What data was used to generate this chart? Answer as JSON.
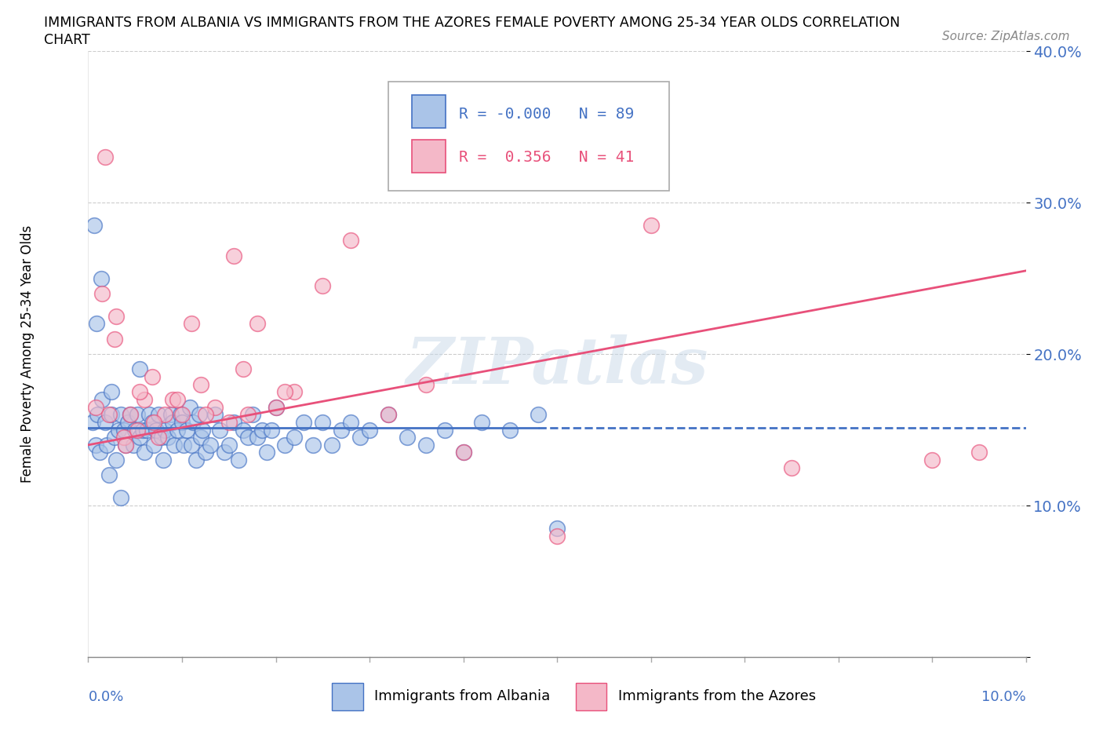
{
  "title_line1": "IMMIGRANTS FROM ALBANIA VS IMMIGRANTS FROM THE AZORES FEMALE POVERTY AMONG 25-34 YEAR OLDS CORRELATION",
  "title_line2": "CHART",
  "source": "Source: ZipAtlas.com",
  "ylabel": "Female Poverty Among 25-34 Year Olds",
  "xlim": [
    0.0,
    10.0
  ],
  "ylim": [
    0.0,
    40.0
  ],
  "albania_color": "#aac4e8",
  "azores_color": "#f4b8c8",
  "albania_edge_color": "#4472c4",
  "azores_edge_color": "#e8507a",
  "albania_line_color": "#4472c4",
  "azores_line_color": "#e8507a",
  "legend_albania_R": "-0.000",
  "legend_albania_N": "89",
  "legend_azores_R": "0.356",
  "legend_azores_N": "41",
  "watermark": "ZIPatlas",
  "albania_x": [
    0.05,
    0.08,
    0.1,
    0.12,
    0.15,
    0.18,
    0.2,
    0.22,
    0.25,
    0.28,
    0.3,
    0.32,
    0.35,
    0.38,
    0.4,
    0.42,
    0.45,
    0.48,
    0.5,
    0.52,
    0.55,
    0.58,
    0.6,
    0.62,
    0.65,
    0.68,
    0.7,
    0.72,
    0.75,
    0.78,
    0.8,
    0.82,
    0.85,
    0.88,
    0.9,
    0.92,
    0.95,
    0.98,
    1.0,
    1.02,
    1.05,
    1.08,
    1.1,
    1.12,
    1.15,
    1.18,
    1.2,
    1.22,
    1.25,
    1.3,
    1.35,
    1.4,
    1.45,
    1.5,
    1.55,
    1.6,
    1.65,
    1.7,
    1.75,
    1.8,
    1.85,
    1.9,
    1.95,
    2.0,
    2.1,
    2.2,
    2.3,
    2.4,
    2.5,
    2.6,
    2.7,
    2.8,
    2.9,
    3.0,
    3.2,
    3.4,
    3.6,
    3.8,
    4.0,
    4.2,
    4.5,
    5.0,
    4.8,
    0.06,
    0.09,
    0.14,
    0.25,
    0.35,
    0.55
  ],
  "albania_y": [
    15.5,
    14.0,
    16.0,
    13.5,
    17.0,
    15.5,
    14.0,
    12.0,
    16.0,
    14.5,
    13.0,
    15.0,
    16.0,
    15.0,
    14.0,
    15.5,
    16.0,
    14.0,
    15.0,
    16.0,
    14.5,
    15.0,
    13.5,
    15.0,
    16.0,
    15.5,
    14.0,
    15.0,
    16.0,
    14.5,
    13.0,
    15.0,
    14.5,
    16.0,
    15.5,
    14.0,
    15.0,
    16.0,
    15.5,
    14.0,
    15.0,
    16.5,
    14.0,
    15.5,
    13.0,
    16.0,
    14.5,
    15.0,
    13.5,
    14.0,
    16.0,
    15.0,
    13.5,
    14.0,
    15.5,
    13.0,
    15.0,
    14.5,
    16.0,
    14.5,
    15.0,
    13.5,
    15.0,
    16.5,
    14.0,
    14.5,
    15.5,
    14.0,
    15.5,
    14.0,
    15.0,
    15.5,
    14.5,
    15.0,
    16.0,
    14.5,
    14.0,
    15.0,
    13.5,
    15.5,
    15.0,
    8.5,
    16.0,
    28.5,
    22.0,
    25.0,
    17.5,
    10.5,
    19.0
  ],
  "azores_x": [
    0.08,
    0.15,
    0.22,
    0.3,
    0.38,
    0.45,
    0.52,
    0.6,
    0.68,
    0.75,
    0.82,
    0.9,
    1.0,
    1.1,
    1.2,
    1.35,
    1.5,
    1.65,
    1.8,
    2.0,
    2.2,
    2.5,
    2.8,
    3.2,
    3.6,
    0.28,
    0.55,
    0.7,
    0.95,
    1.25,
    4.0,
    5.0,
    6.0,
    7.5,
    9.0,
    9.5,
    0.18,
    0.4,
    1.55,
    1.7,
    2.1
  ],
  "azores_y": [
    16.5,
    24.0,
    16.0,
    22.5,
    14.5,
    16.0,
    15.0,
    17.0,
    18.5,
    14.5,
    16.0,
    17.0,
    16.0,
    22.0,
    18.0,
    16.5,
    15.5,
    19.0,
    22.0,
    16.5,
    17.5,
    24.5,
    27.5,
    16.0,
    18.0,
    21.0,
    17.5,
    15.5,
    17.0,
    16.0,
    13.5,
    8.0,
    28.5,
    12.5,
    13.0,
    13.5,
    33.0,
    14.0,
    26.5,
    16.0,
    17.5
  ]
}
